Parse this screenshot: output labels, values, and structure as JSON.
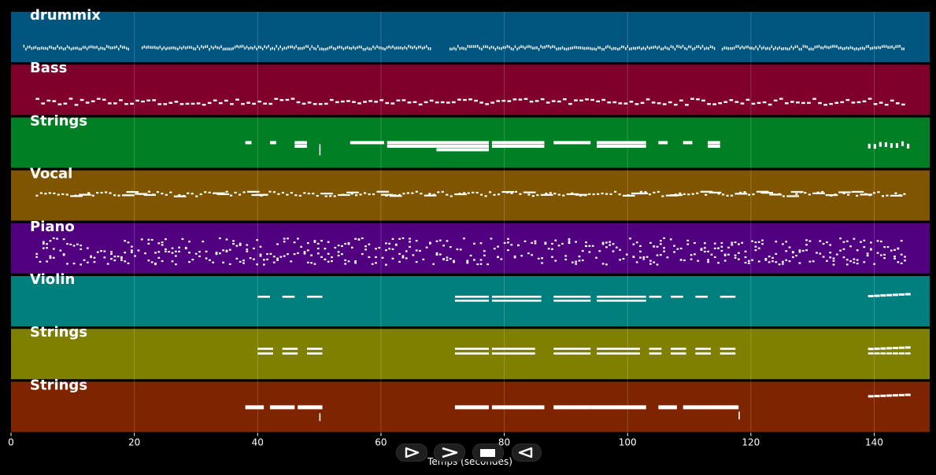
{
  "chart_data": {
    "type": "piano-roll",
    "xlabel": "Temps (secondes)",
    "xlim": [
      0,
      149
    ],
    "xticks": [
      0,
      20,
      40,
      60,
      80,
      100,
      120,
      140
    ],
    "grid": true,
    "tracks": [
      {
        "name": "drummix",
        "color": "#00567f",
        "style": "drums"
      },
      {
        "name": "Bass",
        "color": "#7f002a",
        "style": "bass"
      },
      {
        "name": "Strings",
        "color": "#007f24",
        "style": "strings1"
      },
      {
        "name": "Vocal",
        "color": "#7f5500",
        "style": "vocal"
      },
      {
        "name": "Piano",
        "color": "#51007f",
        "style": "piano"
      },
      {
        "name": "Violin",
        "color": "#007f7f",
        "style": "violin"
      },
      {
        "name": "Strings",
        "color": "#7f7f00",
        "style": "strings2"
      },
      {
        "name": "Strings",
        "color": "#7f2400",
        "style": "strings3"
      }
    ]
  },
  "controls": [
    {
      "name": "play-icon"
    },
    {
      "name": "fast-forward-icon"
    },
    {
      "name": "stop-icon"
    },
    {
      "name": "rewind-icon"
    }
  ]
}
